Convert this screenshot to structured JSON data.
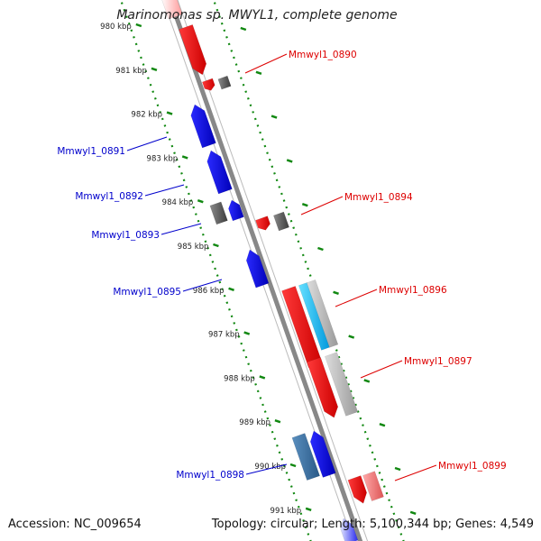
{
  "title": "Marinomonas sp. MWYL1, complete genome",
  "footer": {
    "accession": "Accession: NC_009654",
    "summary": "Topology: circular; Length: 5,100,344 bp; Genes: 4,549"
  },
  "kbp_ticks": [
    "980 kbp",
    "981 kbp",
    "982 kbp",
    "983 kbp",
    "984 kbp",
    "985 kbp",
    "986 kbp",
    "987 kbp",
    "988 kbp",
    "989 kbp",
    "990 kbp",
    "991 kbp"
  ],
  "left_labels": [
    {
      "text": "Mmwyl1_0891",
      "color": "#0000cc"
    },
    {
      "text": "Mmwyl1_0892",
      "color": "#0000cc"
    },
    {
      "text": "Mmwyl1_0893",
      "color": "#0000cc"
    },
    {
      "text": "Mmwyl1_0895",
      "color": "#0000cc"
    },
    {
      "text": "Mmwyl1_0898",
      "color": "#0000cc"
    }
  ],
  "right_labels": [
    {
      "text": "Mmwyl1_0890",
      "color": "#dd0000"
    },
    {
      "text": "Mmwyl1_0894",
      "color": "#dd0000"
    },
    {
      "text": "Mmwyl1_0896",
      "color": "#dd0000"
    },
    {
      "text": "Mmwyl1_0897",
      "color": "#dd0000"
    },
    {
      "text": "Mmwyl1_0899",
      "color": "#dd0000"
    }
  ],
  "colors": {
    "forward_gene": "#ff0000",
    "reverse_gene": "#0000ee",
    "other_gene": "#666666",
    "rna_gene": "#22ccff",
    "backbone": "#888888",
    "tick_track": "#118811"
  }
}
